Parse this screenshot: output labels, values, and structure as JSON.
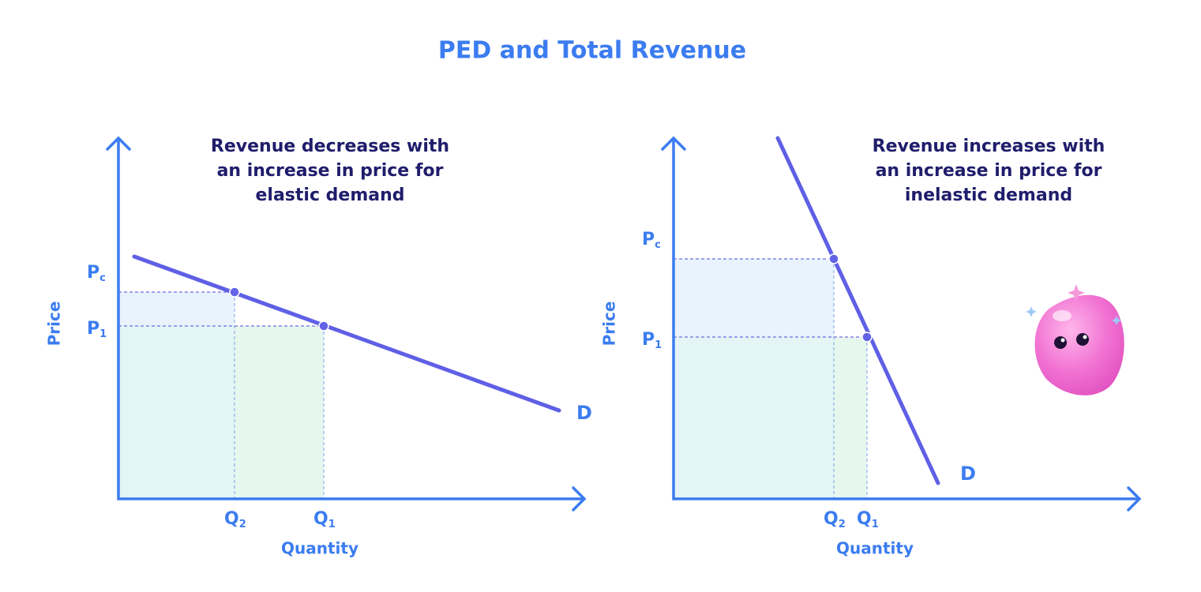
{
  "title": "PED and Total Revenue",
  "panels": [
    {
      "annotation": [
        "Revenue decreases with",
        "an increase in price for",
        "elastic demand"
      ],
      "y_axis_label": "Price",
      "x_axis_label": "Quantity",
      "curve_label": "D",
      "price_labels": [
        {
          "main": "P",
          "sub": "c"
        },
        {
          "main": "P",
          "sub": "1"
        }
      ],
      "quantity_labels": [
        {
          "main": "Q",
          "sub": "2"
        },
        {
          "main": "Q",
          "sub": "1"
        }
      ]
    },
    {
      "annotation": [
        "Revenue increases with",
        "an increase in price for",
        "inelastic demand"
      ],
      "y_axis_label": "Price",
      "x_axis_label": "Quantity",
      "curve_label": "D",
      "price_labels": [
        {
          "main": "P",
          "sub": "c"
        },
        {
          "main": "P",
          "sub": "1"
        }
      ],
      "quantity_labels": [
        {
          "main": "Q",
          "sub": "2"
        },
        {
          "main": "Q",
          "sub": "1"
        }
      ]
    }
  ]
}
